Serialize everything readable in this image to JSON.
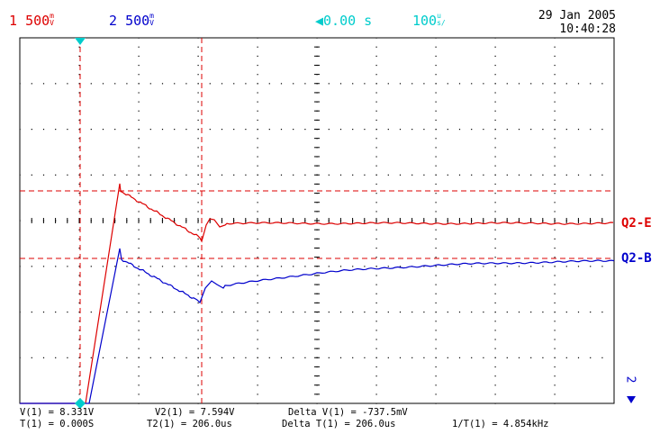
{
  "header": {
    "ch1": {
      "num": "1",
      "value": "500",
      "unit_top": "m",
      "unit_bottom": "V"
    },
    "ch2": {
      "num": "2",
      "value": "500",
      "unit_top": "m",
      "unit_bottom": "V"
    },
    "delay": "0.00 s",
    "timebase": {
      "value": "100",
      "unit_top": "u",
      "unit_bottom": "s/"
    },
    "date": "29 Jan 2005",
    "time": "10:40:28"
  },
  "traces": {
    "red_label": "Q2-E",
    "blue_label": "Q2-B",
    "ch2_marker": "2"
  },
  "colors": {
    "ch1": "#dd0000",
    "ch2": "#0000cc",
    "cursor": "#00cccc",
    "grid": "#000000"
  },
  "measurements": {
    "row1": {
      "v1": "V(1) = 8.331V",
      "v2": "V2(1) = 7.594V",
      "dv": "Delta V(1) = -737.5mV"
    },
    "row2": {
      "t1": "T(1) = 0.000S",
      "t2": "T2(1) = 206.0us",
      "dt": "Delta T(1) = 206.0us",
      "inv": "1/T(1) = 4.854kHz"
    }
  }
}
